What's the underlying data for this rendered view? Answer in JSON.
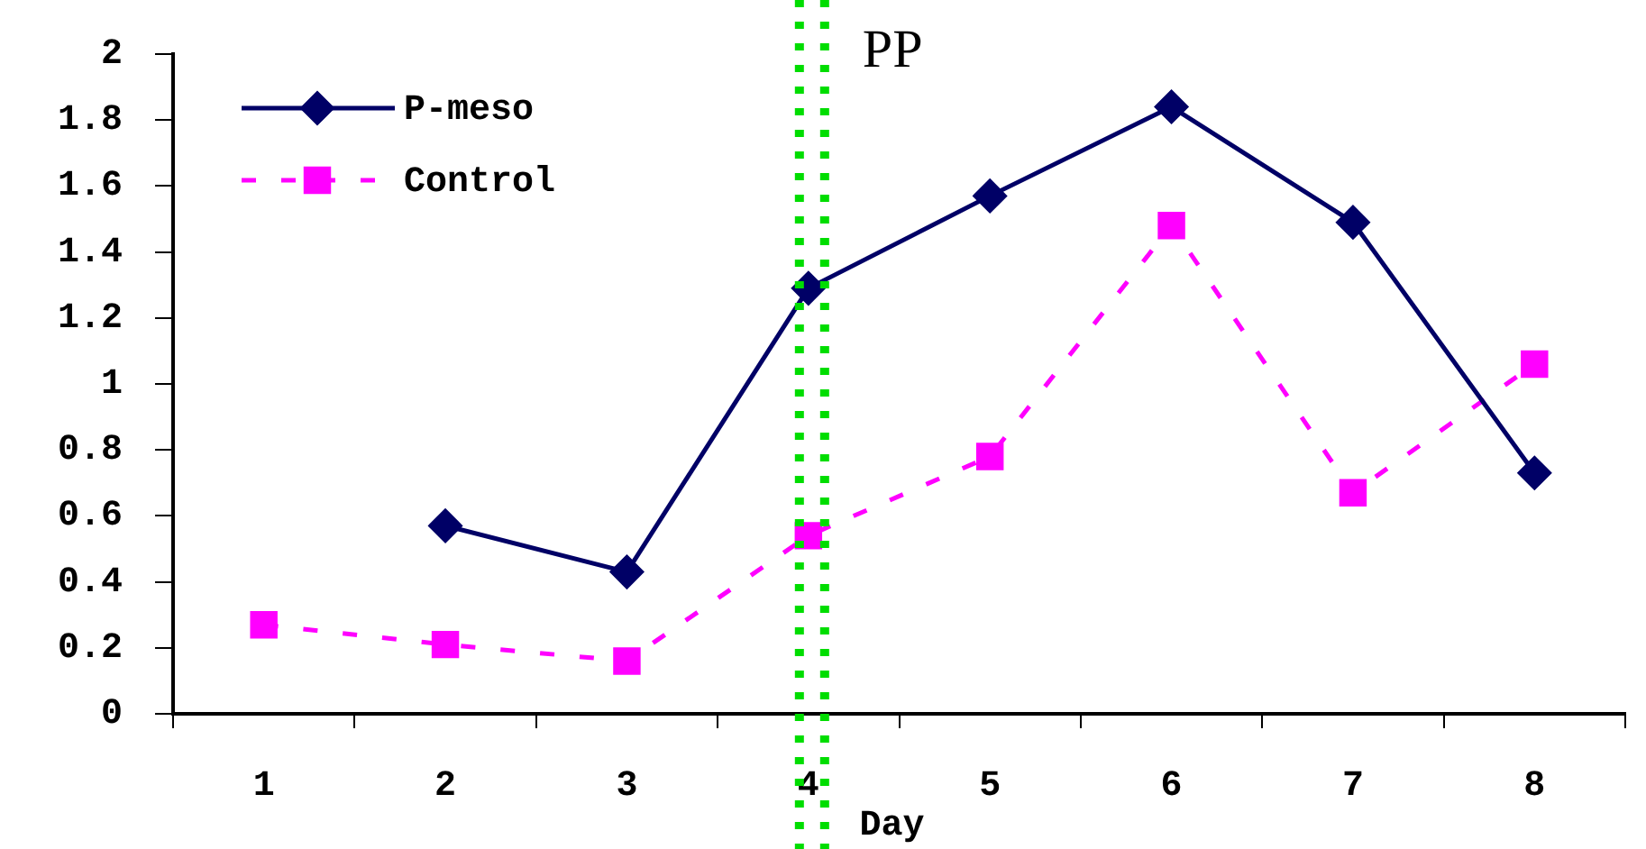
{
  "chart_data": {
    "type": "line",
    "xlabel": "Day",
    "categories": [
      "1",
      "2",
      "3",
      "4",
      "5",
      "6",
      "7",
      "8"
    ],
    "series": [
      {
        "name": "P-meso",
        "color": "#000066",
        "marker": "diamond",
        "line_style": "solid",
        "values": [
          null,
          0.57,
          0.43,
          1.29,
          1.57,
          1.84,
          1.49,
          0.73
        ]
      },
      {
        "name": "Control",
        "color": "#ff00ff",
        "marker": "square",
        "line_style": "dashed",
        "values": [
          0.27,
          0.21,
          0.16,
          0.54,
          0.78,
          1.48,
          0.67,
          1.06
        ]
      }
    ],
    "ylim": [
      0,
      2
    ],
    "yticks": [
      0,
      0.2,
      0.4,
      0.6,
      0.8,
      1,
      1.2,
      1.4,
      1.6,
      1.8,
      2
    ],
    "ref_lines": [
      {
        "axis": "x",
        "value": "4",
        "color": "#00dd00",
        "line_style": "dotted"
      },
      {
        "axis": "x",
        "value": "4",
        "label": "PP",
        "color": "#00dd00",
        "line_style": "dotted"
      }
    ],
    "grid": false,
    "legend": "top left"
  }
}
